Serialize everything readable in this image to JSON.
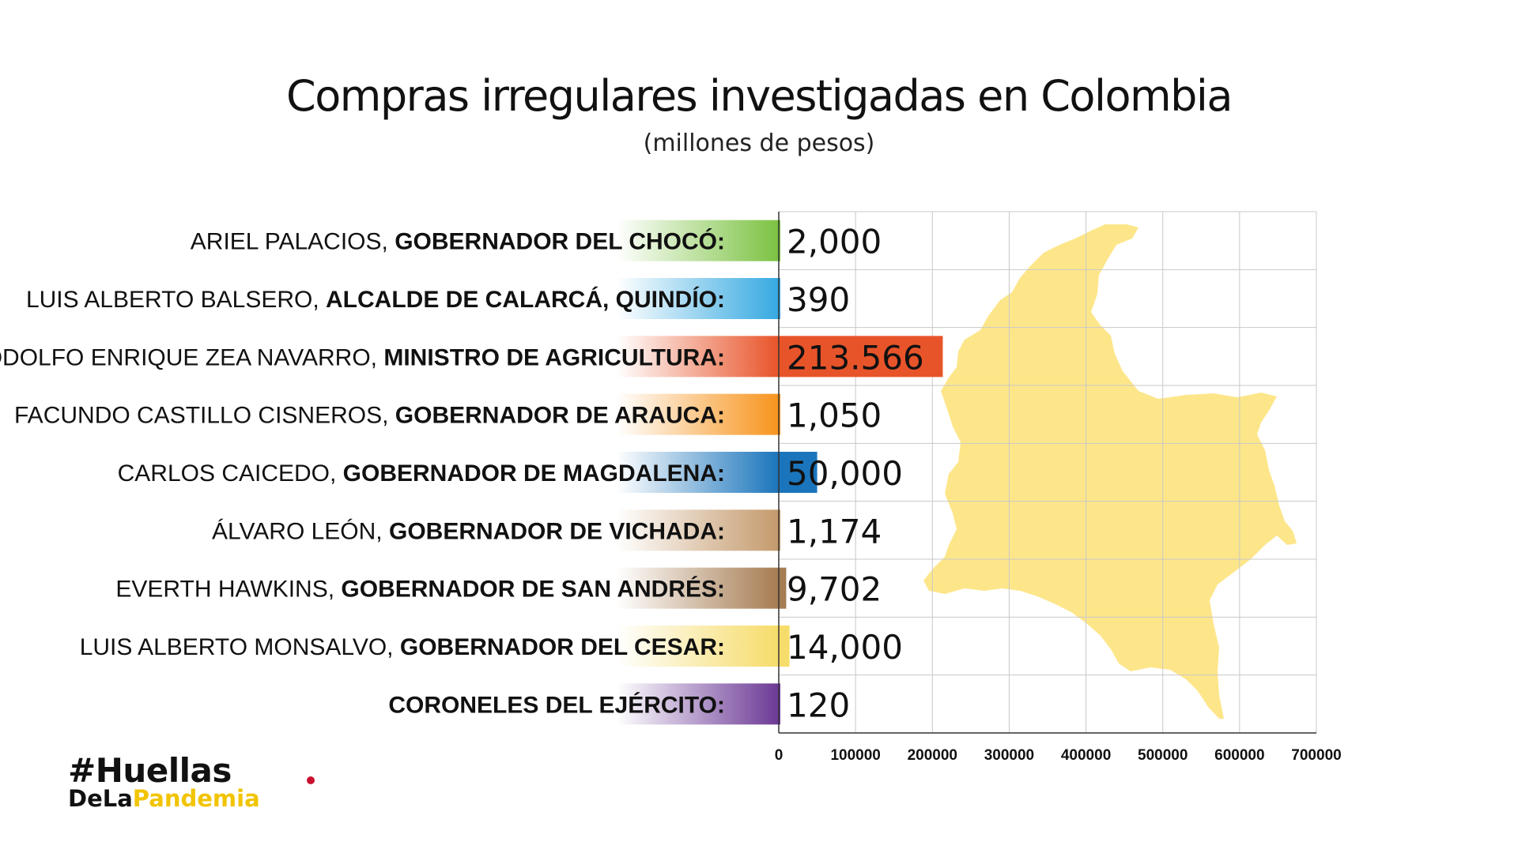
{
  "chart_data": {
    "type": "bar",
    "orientation": "horizontal",
    "title": "Compras irregulares investigadas en Colombia",
    "subtitle": "(millones de pesos)",
    "categories": [
      {
        "name": "ARIEL PALACIOS, ",
        "role": "GOBERNADOR DEL CHOCÓ:"
      },
      {
        "name": "LUIS ALBERTO BALSERO, ",
        "role": "ALCALDE DE CALARCÁ, QUINDÍO:"
      },
      {
        "name": "RODOLFO ENRIQUE ZEA NAVARRO, ",
        "role": "MINISTRO DE AGRICULTURA:"
      },
      {
        "name": "FACUNDO CASTILLO CISNEROS, ",
        "role": "GOBERNADOR DE ARAUCA:"
      },
      {
        "name": "CARLOS CAICEDO, ",
        "role": "GOBERNADOR DE MAGDALENA:"
      },
      {
        "name": "ÁLVARO LEÓN, ",
        "role": "GOBERNADOR DE VICHADA:"
      },
      {
        "name": "EVERTH HAWKINS, ",
        "role": "GOBERNADOR DE SAN ANDRÉS:"
      },
      {
        "name": "LUIS ALBERTO MONSALVO, ",
        "role": "GOBERNADOR DEL CESAR:"
      },
      {
        "name": "",
        "role": "CORONELES DEL EJÉRCITO:"
      }
    ],
    "values": [
      2000,
      390,
      213566,
      1050,
      50000,
      1174,
      9702,
      14000,
      120
    ],
    "value_labels": [
      "2,000",
      "390",
      "213.566",
      "1,050",
      "50,000",
      "1,174",
      "9,702",
      "14,000",
      "120"
    ],
    "colors": [
      "#7cc242",
      "#36a9e1",
      "#e8542a",
      "#f7941d",
      "#1b75bc",
      "#c49a6c",
      "#a67c52",
      "#f6dc6a",
      "#6c3a96"
    ],
    "xlim": [
      0,
      700000
    ],
    "xticks": [
      0,
      100000,
      200000,
      300000,
      400000,
      500000,
      600000,
      700000
    ],
    "xtick_labels": [
      "0",
      "100000",
      "200000",
      "300000",
      "400000",
      "500000",
      "600000",
      "700000"
    ],
    "grid": true,
    "background_map": "colombia-map",
    "map_color": "#fde68a"
  },
  "brand": {
    "line1": "#Huellas",
    "line2a": "DeLa",
    "line2b": "Pandemia"
  }
}
